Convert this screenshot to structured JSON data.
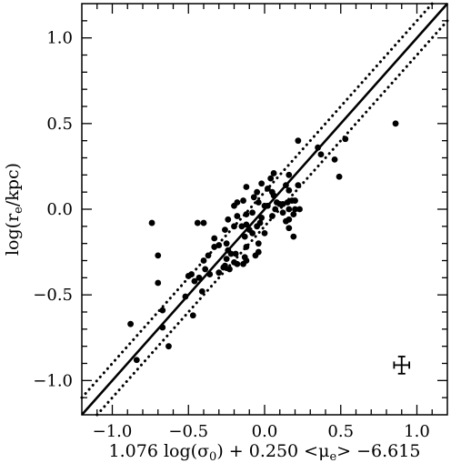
{
  "chart_data": {
    "type": "scatter",
    "title": "",
    "xlabel": "1.076 log(σ₀) + 0.250 <μₑ> −6.615",
    "xlabel_parts": {
      "a": "1.076 log(σ",
      "a_sub": "0",
      "b": ") + 0.250 <μ",
      "b_sub": "e",
      "c": "> −6.615"
    },
    "ylabel": "log(rₑ/kpc)",
    "ylabel_parts": {
      "a": "log(r",
      "a_sub": "e",
      "b": "/kpc)"
    },
    "xlim": [
      -1.2,
      1.2
    ],
    "ylim": [
      -1.2,
      1.2
    ],
    "xticks": [
      -1.0,
      -0.5,
      0.0,
      0.5,
      1.0
    ],
    "xtick_labels": [
      "−1.0",
      "−0.5",
      "0.0",
      "0.5",
      "1.0"
    ],
    "yticks": [
      -1.0,
      -0.5,
      0.0,
      0.5,
      1.0
    ],
    "ytick_labels": [
      "−1.0",
      "−0.5",
      "0.0",
      "0.5",
      "1.0"
    ],
    "grid": false,
    "lines": [
      {
        "style": "solid",
        "slope": 1.0,
        "intercept": 0.0
      },
      {
        "style": "dotted",
        "slope": 1.0,
        "intercept": 0.1
      },
      {
        "style": "dotted",
        "slope": 1.0,
        "intercept": -0.1
      }
    ],
    "errorbar": {
      "x": 0.9,
      "y": -0.91,
      "xerr": 0.05,
      "yerr": 0.05
    },
    "points": [
      [
        0.86,
        0.5
      ],
      [
        0.53,
        0.41
      ],
      [
        0.35,
        0.36
      ],
      [
        0.46,
        0.29
      ],
      [
        0.37,
        0.32
      ],
      [
        0.49,
        0.19
      ],
      [
        0.22,
        0.4
      ],
      [
        0.16,
        0.2
      ],
      [
        0.06,
        0.21
      ],
      [
        0.04,
        0.18
      ],
      [
        0.14,
        0.14
      ],
      [
        0.16,
        0.11
      ],
      [
        0.22,
        0.14
      ],
      [
        0.05,
        0.1
      ],
      [
        0.06,
        0.08
      ],
      [
        0.02,
        0.12
      ],
      [
        -0.02,
        0.15
      ],
      [
        -0.12,
        0.13
      ],
      [
        -0.05,
        0.1
      ],
      [
        -0.07,
        0.07
      ],
      [
        -0.14,
        0.05
      ],
      [
        -0.18,
        0.04
      ],
      [
        0.18,
        0.05
      ],
      [
        0.2,
        0.05
      ],
      [
        0.15,
        0.04
      ],
      [
        0.12,
        0.03
      ],
      [
        0.1,
        0.03
      ],
      [
        0.08,
        0.04
      ],
      [
        -0.04,
        0.04
      ],
      [
        0.02,
        0.02
      ],
      [
        0.0,
        0.02
      ],
      [
        -0.2,
        0.02
      ],
      [
        0.23,
        0.0
      ],
      [
        0.2,
        0.0
      ],
      [
        0.16,
        0.0
      ],
      [
        0.07,
        0.0
      ],
      [
        -0.08,
        -0.02
      ],
      [
        -0.12,
        -0.03
      ],
      [
        -0.18,
        -0.04
      ],
      [
        0.19,
        -0.03
      ],
      [
        0.12,
        -0.02
      ],
      [
        0.05,
        -0.04
      ],
      [
        -0.02,
        -0.05
      ],
      [
        -0.24,
        -0.06
      ],
      [
        0.16,
        -0.06
      ],
      [
        0.14,
        -0.07
      ],
      [
        -0.03,
        -0.08
      ],
      [
        -0.05,
        -0.1
      ],
      [
        -0.12,
        -0.09
      ],
      [
        -0.15,
        -0.1
      ],
      [
        -0.2,
        -0.1
      ],
      [
        0.16,
        -0.11
      ],
      [
        -0.1,
        -0.12
      ],
      [
        -0.26,
        -0.12
      ],
      [
        0.0,
        -0.14
      ],
      [
        -0.08,
        -0.14
      ],
      [
        -0.13,
        -0.16
      ],
      [
        0.19,
        -0.16
      ],
      [
        -0.4,
        -0.08
      ],
      [
        -0.44,
        -0.08
      ],
      [
        -0.74,
        -0.08
      ],
      [
        -0.7,
        -0.27
      ],
      [
        -0.33,
        -0.17
      ],
      [
        -0.25,
        -0.2
      ],
      [
        -0.3,
        -0.21
      ],
      [
        -0.33,
        -0.22
      ],
      [
        -0.04,
        -0.2
      ],
      [
        -0.12,
        -0.22
      ],
      [
        -0.24,
        -0.24
      ],
      [
        -0.19,
        -0.26
      ],
      [
        -0.04,
        -0.25
      ],
      [
        -0.22,
        -0.26
      ],
      [
        -0.06,
        -0.27
      ],
      [
        -0.13,
        -0.28
      ],
      [
        -0.25,
        -0.29
      ],
      [
        -0.12,
        -0.3
      ],
      [
        -0.2,
        -0.31
      ],
      [
        -0.14,
        -0.32
      ],
      [
        -0.26,
        -0.33
      ],
      [
        -0.18,
        -0.32
      ],
      [
        -0.23,
        -0.35
      ],
      [
        -0.37,
        -0.27
      ],
      [
        -0.4,
        -0.3
      ],
      [
        -0.39,
        -0.35
      ],
      [
        -0.36,
        -0.38
      ],
      [
        -0.3,
        -0.37
      ],
      [
        -0.27,
        -0.34
      ],
      [
        -0.48,
        -0.38
      ],
      [
        -0.5,
        -0.39
      ],
      [
        -0.46,
        -0.42
      ],
      [
        -0.43,
        -0.4
      ],
      [
        -0.41,
        -0.48
      ],
      [
        -0.52,
        -0.51
      ],
      [
        -0.7,
        -0.43
      ],
      [
        -0.67,
        -0.59
      ],
      [
        -0.47,
        -0.62
      ],
      [
        -0.67,
        -0.69
      ],
      [
        -0.63,
        -0.8
      ],
      [
        -0.88,
        -0.67
      ],
      [
        -0.84,
        -0.88
      ]
    ]
  }
}
